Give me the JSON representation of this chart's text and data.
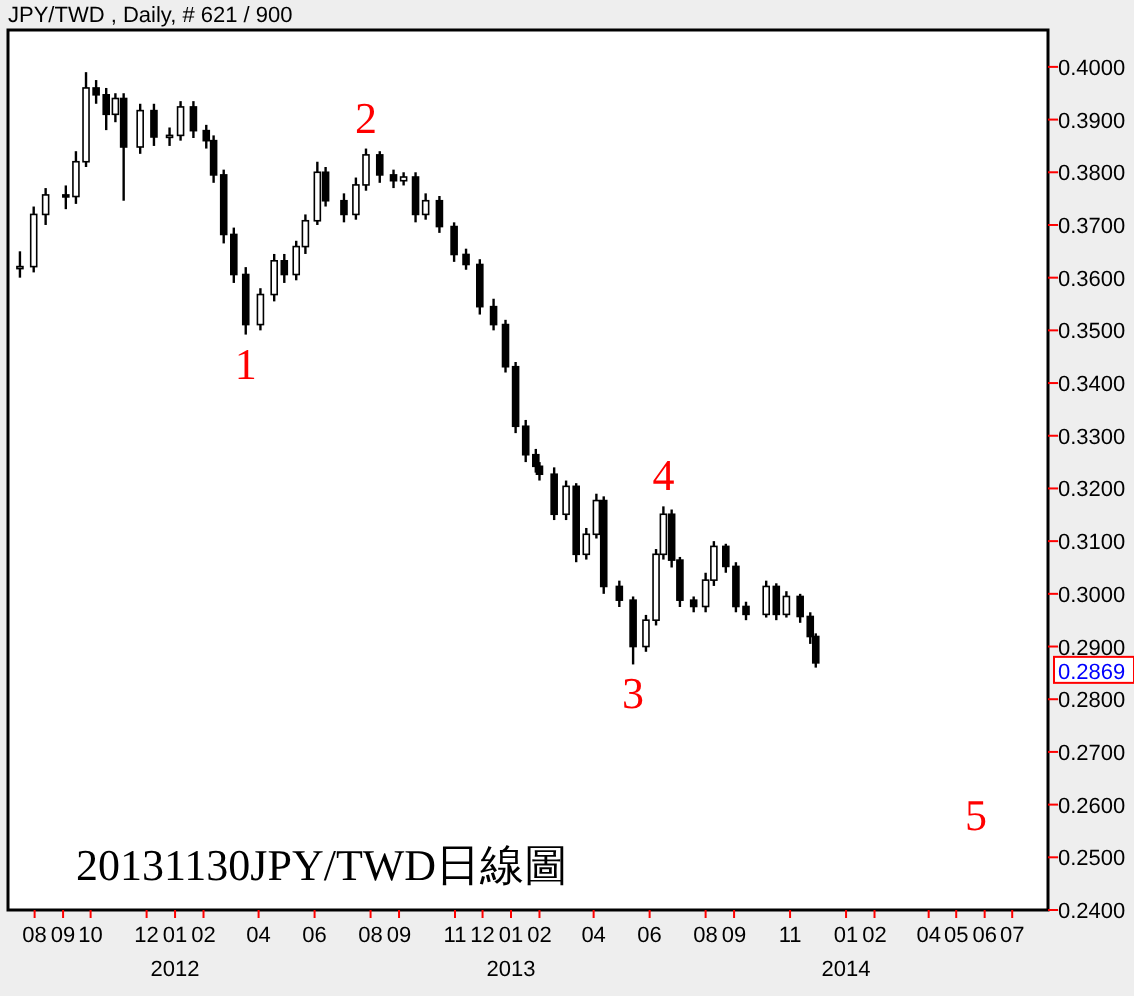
{
  "chart_data": {
    "type": "candlestick",
    "title": "JPY/TWD , Daily, # 621 / 900",
    "x": [
      "2011-07-16",
      "2011-07-31",
      "2011-08-13",
      "2011-09-04",
      "2011-09-15",
      "2011-09-26",
      "2011-10-07",
      "2011-10-18",
      "2011-10-28",
      "2011-11-06",
      "2011-11-24",
      "2011-12-09",
      "2011-12-26",
      "2012-01-07",
      "2012-01-21",
      "2012-02-04",
      "2012-02-12",
      "2012-02-23",
      "2012-03-05",
      "2012-03-18",
      "2012-04-03",
      "2012-04-18",
      "2012-04-29",
      "2012-05-12",
      "2012-05-22",
      "2012-06-04",
      "2012-06-13",
      "2012-07-03",
      "2012-07-16",
      "2012-07-27",
      "2012-08-11",
      "2012-08-26",
      "2012-09-06",
      "2012-09-19",
      "2012-09-30",
      "2012-10-15",
      "2012-10-31",
      "2012-11-13",
      "2012-11-28",
      "2012-12-13",
      "2012-12-26",
      "2013-01-06",
      "2013-01-17",
      "2013-01-28",
      "2013-02-01",
      "2013-02-17",
      "2013-03-02",
      "2013-03-13",
      "2013-03-24",
      "2013-04-04",
      "2013-04-12",
      "2013-04-29",
      "2013-05-14",
      "2013-05-28",
      "2013-06-08",
      "2013-06-16",
      "2013-06-25",
      "2013-07-04",
      "2013-07-19",
      "2013-08-01",
      "2013-08-10",
      "2013-08-23",
      "2013-09-03",
      "2013-09-14",
      "2013-10-06",
      "2013-10-17",
      "2013-10-28",
      "2013-11-12",
      "2013-11-23",
      "2013-11-29"
    ],
    "series": [
      {
        "color": "#000000",
        "ohlc": [
          [
            0.362,
            0.365,
            0.36,
            0.3621
          ],
          [
            0.3621,
            0.3735,
            0.361,
            0.372
          ],
          [
            0.372,
            0.377,
            0.37,
            0.3757
          ],
          [
            0.3757,
            0.3775,
            0.373,
            0.3754
          ],
          [
            0.3754,
            0.384,
            0.374,
            0.382
          ],
          [
            0.382,
            0.399,
            0.381,
            0.396
          ],
          [
            0.396,
            0.3975,
            0.393,
            0.3947
          ],
          [
            0.3947,
            0.396,
            0.388,
            0.391
          ],
          [
            0.391,
            0.395,
            0.3895,
            0.394
          ],
          [
            0.394,
            0.395,
            0.3746,
            0.3848
          ],
          [
            0.3848,
            0.393,
            0.3835,
            0.3917
          ],
          [
            0.3917,
            0.393,
            0.385,
            0.3867
          ],
          [
            0.3867,
            0.3885,
            0.385,
            0.387
          ],
          [
            0.387,
            0.3935,
            0.386,
            0.3924
          ],
          [
            0.3924,
            0.3935,
            0.3865,
            0.3879
          ],
          [
            0.3879,
            0.389,
            0.3845,
            0.386
          ],
          [
            0.386,
            0.387,
            0.378,
            0.3795
          ],
          [
            0.3795,
            0.3805,
            0.3665,
            0.3682
          ],
          [
            0.3682,
            0.3695,
            0.359,
            0.3606
          ],
          [
            0.3606,
            0.362,
            0.3492,
            0.3511
          ],
          [
            0.3511,
            0.358,
            0.35,
            0.3568
          ],
          [
            0.3568,
            0.3645,
            0.3555,
            0.3632
          ],
          [
            0.3632,
            0.3645,
            0.359,
            0.3606
          ],
          [
            0.3606,
            0.367,
            0.3595,
            0.3659
          ],
          [
            0.3659,
            0.372,
            0.3645,
            0.3708
          ],
          [
            0.3708,
            0.382,
            0.37,
            0.38
          ],
          [
            0.38,
            0.381,
            0.3735,
            0.3746
          ],
          [
            0.3746,
            0.376,
            0.3705,
            0.372
          ],
          [
            0.372,
            0.379,
            0.371,
            0.3776
          ],
          [
            0.3776,
            0.3845,
            0.3765,
            0.3833
          ],
          [
            0.3833,
            0.384,
            0.378,
            0.3795
          ],
          [
            0.3795,
            0.3805,
            0.377,
            0.3784
          ],
          [
            0.3784,
            0.38,
            0.3775,
            0.3791
          ],
          [
            0.3791,
            0.38,
            0.3705,
            0.372
          ],
          [
            0.372,
            0.376,
            0.371,
            0.3746
          ],
          [
            0.3746,
            0.3755,
            0.3685,
            0.3697
          ],
          [
            0.3697,
            0.3705,
            0.363,
            0.3644
          ],
          [
            0.3644,
            0.3655,
            0.3615,
            0.3625
          ],
          [
            0.3625,
            0.3635,
            0.353,
            0.3545
          ],
          [
            0.3545,
            0.356,
            0.35,
            0.3511
          ],
          [
            0.3511,
            0.352,
            0.342,
            0.3431
          ],
          [
            0.3431,
            0.344,
            0.3305,
            0.3318
          ],
          [
            0.3318,
            0.333,
            0.325,
            0.3264
          ],
          [
            0.3264,
            0.3275,
            0.323,
            0.3242
          ],
          [
            0.3242,
            0.325,
            0.3215,
            0.3227
          ],
          [
            0.3227,
            0.324,
            0.314,
            0.3151
          ],
          [
            0.3151,
            0.3215,
            0.314,
            0.3204
          ],
          [
            0.3204,
            0.321,
            0.306,
            0.3075
          ],
          [
            0.3075,
            0.3125,
            0.3065,
            0.3113
          ],
          [
            0.3113,
            0.319,
            0.3105,
            0.3177
          ],
          [
            0.3177,
            0.3185,
            0.3,
            0.3014
          ],
          [
            0.3014,
            0.3025,
            0.2975,
            0.2988
          ],
          [
            0.2988,
            0.2995,
            0.2866,
            0.29
          ],
          [
            0.29,
            0.296,
            0.289,
            0.295
          ],
          [
            0.295,
            0.3085,
            0.294,
            0.3075
          ],
          [
            0.3075,
            0.3166,
            0.3065,
            0.3151
          ],
          [
            0.3151,
            0.316,
            0.305,
            0.3064
          ],
          [
            0.3064,
            0.307,
            0.2975,
            0.2988
          ],
          [
            0.2988,
            0.2995,
            0.2965,
            0.2976
          ],
          [
            0.2976,
            0.304,
            0.2965,
            0.3026
          ],
          [
            0.3026,
            0.31,
            0.3015,
            0.309
          ],
          [
            0.309,
            0.3095,
            0.304,
            0.3052
          ],
          [
            0.3052,
            0.306,
            0.2965,
            0.2976
          ],
          [
            0.2976,
            0.2985,
            0.295,
            0.2961
          ],
          [
            0.2961,
            0.3025,
            0.2955,
            0.3014
          ],
          [
            0.3014,
            0.302,
            0.295,
            0.2961
          ],
          [
            0.2961,
            0.3005,
            0.2955,
            0.2995
          ],
          [
            0.2995,
            0.3,
            0.2945,
            0.2957
          ],
          [
            0.2957,
            0.2965,
            0.2905,
            0.2919
          ],
          [
            0.2919,
            0.2925,
            0.286,
            0.2869
          ]
        ]
      }
    ],
    "xlim": [
      "2011-07-03",
      "2014-08-09"
    ],
    "ylim": [
      0.24,
      0.407
    ],
    "xticks": [
      {
        "value": "2011-08",
        "label": "08"
      },
      {
        "value": "2011-09",
        "label": "09"
      },
      {
        "value": "2011-10",
        "label": "10"
      },
      {
        "value": "2011-12",
        "label": "12"
      },
      {
        "value": "2012-01",
        "label": "01\n2012"
      },
      {
        "value": "2012-02",
        "label": "02"
      },
      {
        "value": "2012-04",
        "label": "04"
      },
      {
        "value": "2012-06",
        "label": "06"
      },
      {
        "value": "2012-08",
        "label": "08"
      },
      {
        "value": "2012-09",
        "label": "09"
      },
      {
        "value": "2012-11",
        "label": "11"
      },
      {
        "value": "2012-12",
        "label": "12"
      },
      {
        "value": "2013-01",
        "label": "01\n2013"
      },
      {
        "value": "2013-02",
        "label": "02"
      },
      {
        "value": "2013-04",
        "label": "04"
      },
      {
        "value": "2013-06",
        "label": "06"
      },
      {
        "value": "2013-08",
        "label": "08"
      },
      {
        "value": "2013-09",
        "label": "09"
      },
      {
        "value": "2013-11",
        "label": "11"
      },
      {
        "value": "2014-01",
        "label": "01\n2014"
      },
      {
        "value": "2014-02",
        "label": "02"
      },
      {
        "value": "2014-04",
        "label": "04"
      },
      {
        "value": "2014-05",
        "label": "05"
      },
      {
        "value": "2014-06",
        "label": "06"
      },
      {
        "value": "2014-07",
        "label": "07"
      }
    ],
    "yticks": [
      {
        "value": 0.24,
        "label": "0.2400"
      },
      {
        "value": 0.25,
        "label": "0.2500"
      },
      {
        "value": 0.26,
        "label": "0.2600"
      },
      {
        "value": 0.27,
        "label": "0.2700"
      },
      {
        "value": 0.28,
        "label": "0.2800"
      },
      {
        "value": 0.29,
        "label": "0.2900"
      },
      {
        "value": 0.3,
        "label": "0.3000"
      },
      {
        "value": 0.31,
        "label": "0.3100"
      },
      {
        "value": 0.32,
        "label": "0.3200"
      },
      {
        "value": 0.33,
        "label": "0.3300"
      },
      {
        "value": 0.34,
        "label": "0.3400"
      },
      {
        "value": 0.35,
        "label": "0.3500"
      },
      {
        "value": 0.36,
        "label": "0.3600"
      },
      {
        "value": 0.37,
        "label": "0.3700"
      },
      {
        "value": 0.38,
        "label": "0.3800"
      },
      {
        "value": 0.39,
        "label": "0.3900"
      },
      {
        "value": 0.4,
        "label": "0.4000"
      }
    ],
    "annotations": [
      {
        "text": "1",
        "x": "2012-03-18",
        "y": 0.3492
      },
      {
        "text": "2",
        "x": "2012-07-27",
        "y": 0.3845
      },
      {
        "text": "3",
        "x": "2013-05-14",
        "y": 0.2866
      },
      {
        "text": "4",
        "x": "2013-06-16",
        "y": 0.3166
      },
      "5",
      "0.2869",
      "20131130JPY/TWD日線圖"
    ],
    "grid": false
  }
}
